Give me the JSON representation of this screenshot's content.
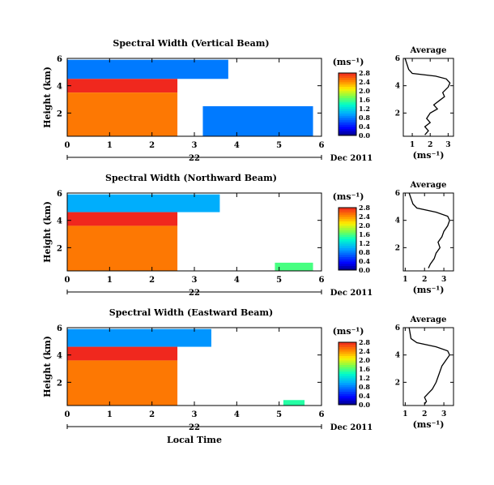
{
  "chart_data": [
    {
      "type": "heatmap",
      "title": "Spectral Width (Vertical Beam)",
      "ylabel": "Height (km)",
      "xlim": [
        0,
        6
      ],
      "ylim": [
        0.3,
        6
      ],
      "xticks": [
        "0",
        "1",
        "2",
        "3",
        "4",
        "5",
        "6"
      ],
      "yticks": [
        "2",
        "4",
        "6"
      ],
      "date_label": "Dec 2011",
      "day_label": "22",
      "colorbar": {
        "unit": "(ms⁻¹)",
        "ticks": [
          "0.0",
          "0.4",
          "0.8",
          "1.2",
          "1.6",
          "2.0",
          "2.4",
          "2.8"
        ],
        "range": [
          0,
          2.8
        ]
      },
      "regions": [
        {
          "x": [
            0,
            3.8
          ],
          "y": [
            4.5,
            5.9
          ],
          "value": 0.8
        },
        {
          "x": [
            0,
            2.6
          ],
          "y": [
            3.5,
            4.5
          ],
          "value": 2.8
        },
        {
          "x": [
            0,
            2.6
          ],
          "y": [
            0.3,
            3.5
          ],
          "value": 2.5
        },
        {
          "x": [
            3.2,
            5.8
          ],
          "y": [
            0.3,
            2.5
          ],
          "value": 0.8
        }
      ],
      "average": {
        "title": "Average",
        "xlabel": "(ms⁻¹)",
        "xlim": [
          0.5,
          3.3
        ],
        "ylim": [
          0.3,
          6
        ],
        "xticks": [
          "1",
          "2",
          "3"
        ],
        "yticks": [
          "2",
          "4",
          "6"
        ],
        "profile": [
          [
            0.6,
            6.0
          ],
          [
            0.8,
            5.2
          ],
          [
            1.0,
            4.9
          ],
          [
            2.3,
            4.7
          ],
          [
            2.9,
            4.5
          ],
          [
            3.1,
            4.2
          ],
          [
            3.0,
            3.9
          ],
          [
            2.7,
            3.5
          ],
          [
            2.8,
            3.2
          ],
          [
            2.5,
            2.9
          ],
          [
            2.2,
            2.6
          ],
          [
            2.4,
            2.3
          ],
          [
            2.0,
            2.0
          ],
          [
            1.8,
            1.6
          ],
          [
            2.0,
            1.3
          ],
          [
            1.7,
            1.0
          ],
          [
            1.9,
            0.7
          ],
          [
            1.7,
            0.4
          ]
        ]
      }
    },
    {
      "type": "heatmap",
      "title": "Spectral Width (Northward Beam)",
      "ylabel": "Height (km)",
      "xlim": [
        0,
        6
      ],
      "ylim": [
        0.3,
        6
      ],
      "xticks": [
        "0",
        "1",
        "2",
        "3",
        "4",
        "5",
        "6"
      ],
      "yticks": [
        "2",
        "4",
        "6"
      ],
      "date_label": "Dec 2011",
      "day_label": "22",
      "colorbar": {
        "unit": "(ms⁻¹)",
        "ticks": [
          "0.0",
          "0.4",
          "0.8",
          "1.2",
          "1.6",
          "2.0",
          "2.4",
          "2.8"
        ],
        "range": [
          0,
          2.8
        ]
      },
      "regions": [
        {
          "x": [
            0,
            3.6
          ],
          "y": [
            4.6,
            5.9
          ],
          "value": 1.0
        },
        {
          "x": [
            0,
            2.6
          ],
          "y": [
            3.6,
            4.6
          ],
          "value": 2.8
        },
        {
          "x": [
            0,
            2.6
          ],
          "y": [
            0.3,
            3.6
          ],
          "value": 2.5
        },
        {
          "x": [
            4.9,
            5.8
          ],
          "y": [
            0.3,
            0.9
          ],
          "value": 1.6
        }
      ],
      "average": {
        "title": "Average",
        "xlabel": "(ms⁻¹)",
        "xlim": [
          0.9,
          3.5
        ],
        "ylim": [
          0.3,
          6
        ],
        "xticks": [
          "1",
          "2",
          "3"
        ],
        "yticks": [
          "2",
          "4",
          "6"
        ],
        "profile": [
          [
            1.2,
            6.0
          ],
          [
            1.4,
            5.2
          ],
          [
            1.6,
            4.9
          ],
          [
            2.6,
            4.6
          ],
          [
            3.2,
            4.3
          ],
          [
            3.3,
            4.0
          ],
          [
            3.2,
            3.6
          ],
          [
            3.0,
            3.2
          ],
          [
            2.9,
            2.8
          ],
          [
            2.7,
            2.4
          ],
          [
            2.8,
            2.0
          ],
          [
            2.6,
            1.6
          ],
          [
            2.5,
            1.2
          ],
          [
            2.3,
            0.8
          ],
          [
            2.2,
            0.5
          ]
        ]
      }
    },
    {
      "type": "heatmap",
      "title": "Spectral Width (Eastward Beam)",
      "ylabel": "Height (km)",
      "xlabel": "Local Time",
      "xlim": [
        0,
        6
      ],
      "ylim": [
        0.3,
        6
      ],
      "xticks": [
        "0",
        "1",
        "2",
        "3",
        "4",
        "5",
        "6"
      ],
      "yticks": [
        "2",
        "4",
        "6"
      ],
      "date_label": "Dec 2011",
      "day_label": "22",
      "colorbar": {
        "unit": "(ms⁻¹)",
        "ticks": [
          "0.0",
          "0.4",
          "0.8",
          "1.2",
          "1.6",
          "2.0",
          "2.4",
          "2.8"
        ],
        "range": [
          0,
          2.8
        ]
      },
      "regions": [
        {
          "x": [
            0,
            3.4
          ],
          "y": [
            4.6,
            5.9
          ],
          "value": 0.9
        },
        {
          "x": [
            0,
            2.6
          ],
          "y": [
            3.6,
            4.6
          ],
          "value": 2.8
        },
        {
          "x": [
            0,
            2.6
          ],
          "y": [
            0.3,
            3.6
          ],
          "value": 2.5
        },
        {
          "x": [
            5.1,
            5.6
          ],
          "y": [
            0.3,
            0.7
          ],
          "value": 1.5
        }
      ],
      "average": {
        "title": "Average",
        "xlabel": "(ms⁻¹)",
        "xlim": [
          0.9,
          3.5
        ],
        "ylim": [
          0.3,
          6
        ],
        "xticks": [
          "1",
          "2",
          "3"
        ],
        "yticks": [
          "2",
          "4",
          "6"
        ],
        "profile": [
          [
            1.2,
            6.0
          ],
          [
            1.3,
            5.2
          ],
          [
            1.6,
            4.9
          ],
          [
            2.6,
            4.6
          ],
          [
            3.2,
            4.3
          ],
          [
            3.3,
            4.0
          ],
          [
            3.1,
            3.6
          ],
          [
            2.9,
            3.2
          ],
          [
            2.8,
            2.8
          ],
          [
            2.7,
            2.4
          ],
          [
            2.6,
            2.0
          ],
          [
            2.4,
            1.5
          ],
          [
            2.2,
            1.2
          ],
          [
            2.0,
            0.9
          ],
          [
            2.1,
            0.6
          ],
          [
            2.0,
            0.4
          ]
        ]
      }
    }
  ]
}
